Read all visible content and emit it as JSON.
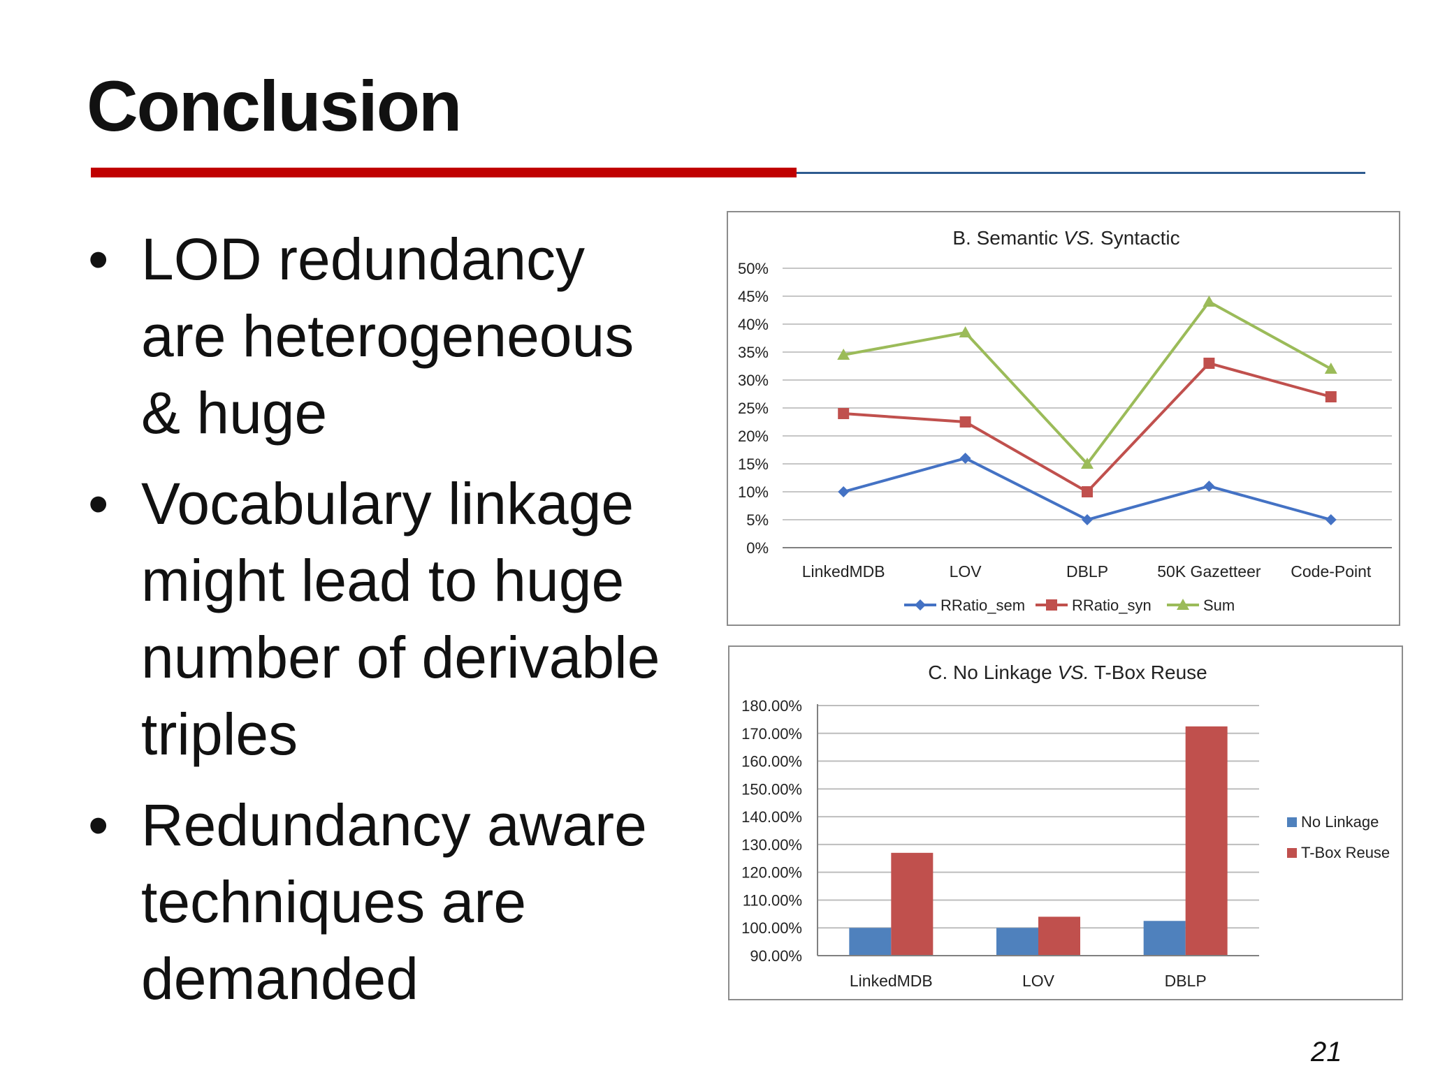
{
  "slide": {
    "title": "Conclusion",
    "bullets": [
      "LOD redundancy are heterogeneous & huge",
      "Vocabulary linkage might lead to huge number of derivable triples",
      "Redundancy aware techniques are demanded"
    ],
    "page_number": "21",
    "colors": {
      "accent_red": "#c00000",
      "rule_blue": "#2e5b8f"
    }
  },
  "chart_data": [
    {
      "type": "line",
      "title_prefix": "B.  Semantic ",
      "title_vs": "VS.",
      "title_suffix": " Syntactic",
      "categories": [
        "LinkedMDB",
        "LOV",
        "DBLP",
        "50K Gazetteer",
        "Code-Point"
      ],
      "ylim": [
        0,
        50
      ],
      "yticks": [
        "0%",
        "5%",
        "10%",
        "15%",
        "20%",
        "25%",
        "30%",
        "35%",
        "40%",
        "45%",
        "50%"
      ],
      "grid": true,
      "legend": "bottom",
      "series": [
        {
          "name": "RRatio_sem",
          "color": "#4472c4",
          "marker": "diamond",
          "values": [
            10,
            16,
            5,
            11,
            5
          ]
        },
        {
          "name": "RRatio_syn",
          "color": "#c0504d",
          "marker": "square",
          "values": [
            24,
            22.5,
            10,
            33,
            27
          ]
        },
        {
          "name": "Sum",
          "color": "#9bbb59",
          "marker": "triangle",
          "values": [
            34.5,
            38.5,
            15,
            44,
            32
          ]
        }
      ]
    },
    {
      "type": "bar",
      "title_prefix": "C. No Linkage ",
      "title_vs": "VS.",
      "title_suffix": " T-Box Reuse",
      "categories": [
        "LinkedMDB",
        "LOV",
        "DBLP"
      ],
      "ylim": [
        90,
        180
      ],
      "yticks": [
        "90.00%",
        "100.00%",
        "110.00%",
        "120.00%",
        "130.00%",
        "140.00%",
        "150.00%",
        "160.00%",
        "170.00%",
        "180.00%"
      ],
      "grid": true,
      "legend": "right",
      "series": [
        {
          "name": "No Linkage",
          "color": "#4f81bd",
          "values": [
            100,
            100,
            102.5
          ]
        },
        {
          "name": "T-Box Reuse",
          "color": "#c0504d",
          "values": [
            127,
            104,
            172.5
          ]
        }
      ]
    }
  ]
}
